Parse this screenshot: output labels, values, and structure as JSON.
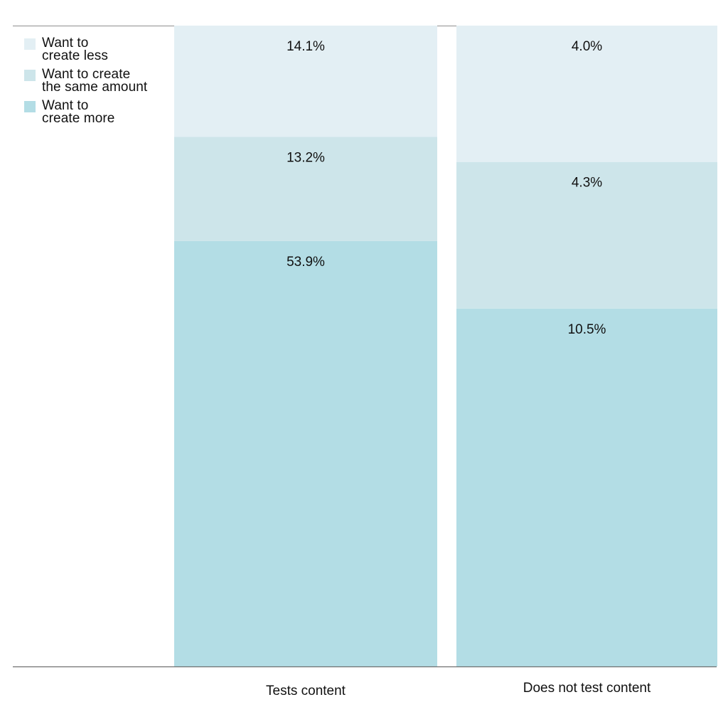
{
  "chart_data": {
    "type": "bar",
    "stacked": true,
    "categories": [
      "Tests content",
      "Does not test content"
    ],
    "series": [
      {
        "name": "Want to\ncreate more",
        "values": [
          53.9,
          10.5
        ],
        "color": "#b3dde5"
      },
      {
        "name": "Want to create\nthe same amount",
        "values": [
          13.2,
          4.3
        ],
        "color": "#cde5ea"
      },
      {
        "name": "Want to\ncreate less",
        "values": [
          14.1,
          4.0
        ],
        "color": "#e3eff4"
      }
    ],
    "data_labels": [
      [
        "53.9%",
        "10.5%"
      ],
      [
        "13.2%",
        "4.3%"
      ],
      [
        "14.1%",
        "4.0%"
      ]
    ],
    "normalized": true,
    "title": "",
    "xlabel": "",
    "ylabel": "",
    "grid": false,
    "legend_position": "top-left"
  },
  "legend": [
    {
      "label": "Want to\ncreate less",
      "color": "#e3eff4"
    },
    {
      "label": "Want to create\nthe same amount",
      "color": "#cde5ea"
    },
    {
      "label": "Want to\ncreate more",
      "color": "#b3dde5"
    }
  ]
}
